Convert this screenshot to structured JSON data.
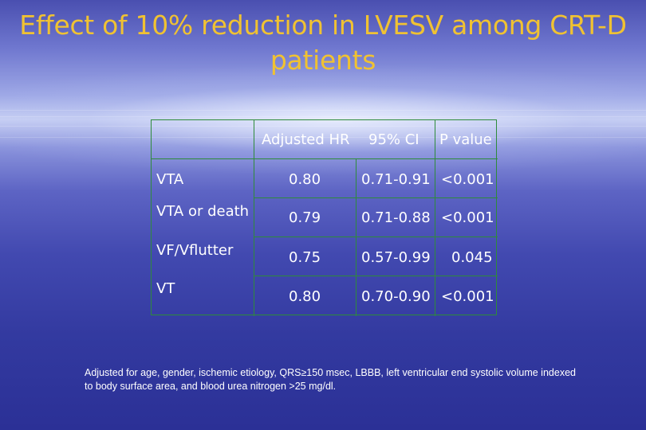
{
  "slide": {
    "title_line1": "Effect of 10%  reduction in LVESV among CRT-D",
    "title_line2": "patients"
  },
  "table": {
    "headers": [
      "",
      "Adjusted HR",
      "95% CI",
      "P value"
    ],
    "rows": [
      {
        "label": "VTA",
        "hr": "0.80",
        "ci": "0.71-0.91",
        "p": "<0.001"
      },
      {
        "label": "VTA or death",
        "hr": "0.79",
        "ci": "0.71-0.88",
        "p": "<0.001"
      },
      {
        "label": "VF/Vflutter",
        "hr": "0.75",
        "ci": "0.57-0.99",
        "p": "0.045"
      },
      {
        "label": "VT",
        "hr": "0.80",
        "ci": "0.70-0.90",
        "p": "<0.001"
      }
    ]
  },
  "footnote": "Adjusted for age, gender, ischemic etiology, QRS≥150 msec, LBBB, left ventricular end systolic volume indexed to body surface area, and  blood urea nitrogen >25 mg/dl."
}
